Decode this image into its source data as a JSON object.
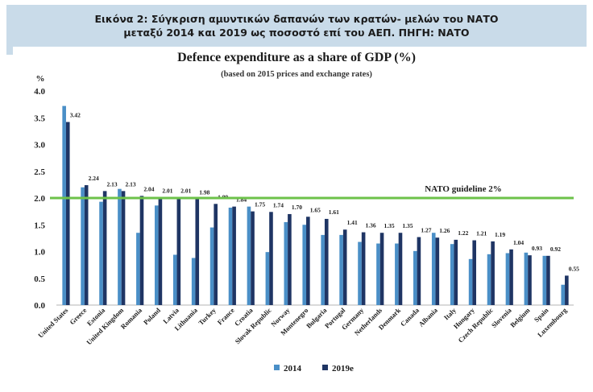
{
  "caption": {
    "line1": "Εικόνα 2: Σύγκριση αμυντικών δαπανών των κρατών- μελών του ΝΑΤΟ",
    "line2": "μεταξύ 2014 και 2019 ως ποσοστό επί του ΑΕΠ. ΠΗΓΗ: ΝΑΤΟ"
  },
  "colors": {
    "series_2014": "#4a8fc7",
    "series_2019": "#1f3564",
    "guideline": "#6cc24a",
    "caption_bg": "#c9dbe9"
  },
  "chart_data": {
    "type": "bar",
    "title": "Defence expenditure as a share of GDP (%)",
    "subtitle": "(based on 2015 prices and exchange rates)",
    "ylabel": "%",
    "ylim": [
      0,
      4.0
    ],
    "yticks": [
      "0.0",
      "0.5",
      "1.0",
      "1.5",
      "2.0",
      "2.5",
      "3.0",
      "3.5",
      "4.0"
    ],
    "grid": false,
    "legend_position": "bottom-center",
    "guideline": {
      "value": 2.0,
      "label": "NATO guideline 2%"
    },
    "categories": [
      "United States",
      "Greece",
      "Estonia",
      "United Kingdom",
      "Romania",
      "Poland",
      "Latvia",
      "Lithuania",
      "Turkey",
      "France",
      "Croatia",
      "Slovak Republic",
      "Norway",
      "Montenegro",
      "Bulgaria",
      "Portugal",
      "Germany",
      "Netherlands",
      "Denmark",
      "Canada",
      "Albania",
      "Italy",
      "Hungary",
      "Czech Republic",
      "Slovenia",
      "Belgium",
      "Spain",
      "Luxembourg"
    ],
    "series": [
      {
        "name": "2014",
        "values": [
          3.72,
          2.2,
          1.93,
          2.17,
          1.35,
          1.86,
          0.94,
          0.88,
          1.45,
          1.82,
          1.84,
          0.99,
          1.55,
          1.5,
          1.31,
          1.31,
          1.18,
          1.15,
          1.15,
          1.01,
          1.35,
          1.14,
          0.86,
          0.95,
          0.97,
          0.98,
          0.92,
          0.38
        ]
      },
      {
        "name": "2019e",
        "values": [
          3.42,
          2.24,
          2.13,
          2.13,
          2.04,
          2.01,
          2.01,
          1.98,
          1.89,
          1.84,
          1.75,
          1.74,
          1.7,
          1.65,
          1.61,
          1.41,
          1.36,
          1.35,
          1.35,
          1.27,
          1.26,
          1.22,
          1.21,
          1.19,
          1.04,
          0.93,
          0.92,
          0.55
        ]
      }
    ],
    "data_labels": [
      "3.42",
      "2.24",
      "2.13",
      "2.13",
      "2.04",
      "2.01",
      "2.01",
      "1.98",
      "1.89",
      "1.84",
      "1.75",
      "1.74",
      "1.70",
      "1.65",
      "1.61",
      "1.41",
      "1.36",
      "1.35",
      "1.35",
      "1.27",
      "1.26",
      "1.22",
      "1.21",
      "1.19",
      "1.04",
      "0.93",
      "0.92",
      "0.55"
    ]
  }
}
